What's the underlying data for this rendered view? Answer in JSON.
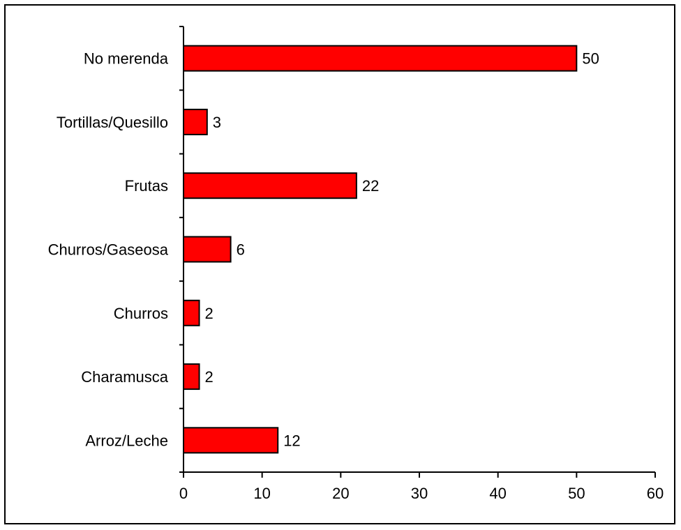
{
  "chart_data": {
    "type": "bar",
    "orientation": "horizontal",
    "categories": [
      "No merenda",
      "Tortillas/Quesillo",
      "Frutas",
      "Churros/Gaseosa",
      "Churros",
      "Charamusca",
      "Arroz/Leche"
    ],
    "values": [
      50,
      3,
      22,
      6,
      2,
      2,
      12
    ],
    "xlim": [
      0,
      60
    ],
    "xticks": [
      0,
      10,
      20,
      30,
      40,
      50,
      60
    ],
    "xticklabels": [
      "0",
      "10",
      "20",
      "30",
      "40",
      "50",
      "60"
    ],
    "bar_color": "#ff0000",
    "grid": false,
    "legend": "none",
    "title": "",
    "xlabel": "",
    "ylabel": ""
  }
}
